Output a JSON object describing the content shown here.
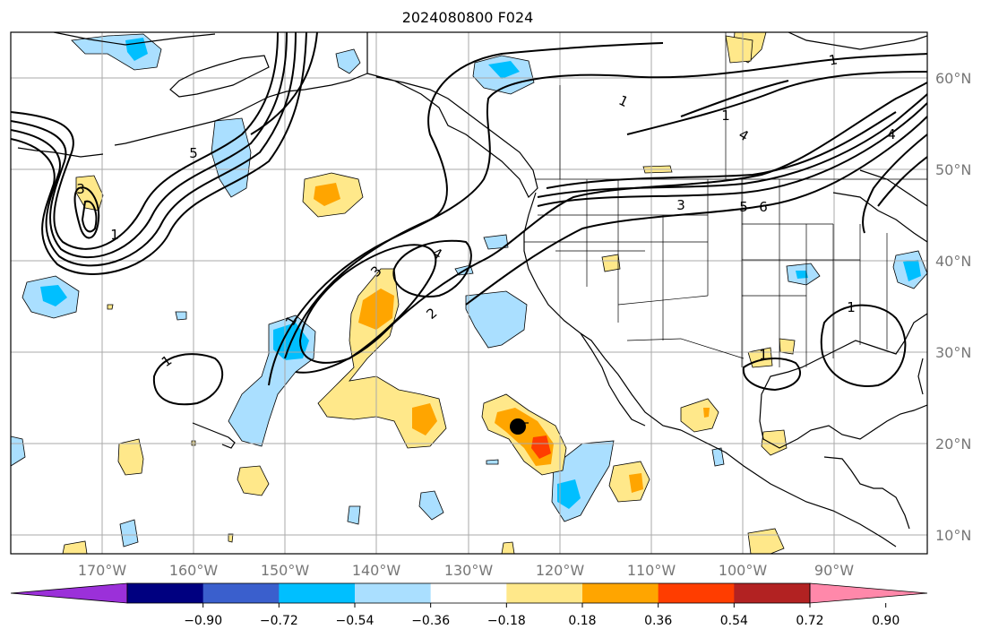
{
  "title": "2024080800 F024",
  "lat_labels": [
    "10°N",
    "20°N",
    "30°N",
    "40°N",
    "50°N",
    "60°N"
  ],
  "lon_labels": [
    "170°W",
    "160°W",
    "150°W",
    "140°W",
    "130°W",
    "120°W",
    "110°W",
    "100°W",
    "90°W"
  ],
  "colorbar": {
    "colors": [
      "#9b30d9",
      "#000080",
      "#3a5fcd",
      "#00bfff",
      "#aadfff",
      "#ffffff",
      "#ffe88a",
      "#ffa500",
      "#ff3d00",
      "#b22222",
      "#ff88aa"
    ],
    "ticks": [
      "−0.90",
      "−0.72",
      "−0.54",
      "−0.36",
      "−0.18",
      "0.18",
      "0.36",
      "0.54",
      "0.72",
      "0.90"
    ]
  },
  "contour_labels": [
    "1",
    "1",
    "1",
    "1",
    "1",
    "1",
    "1",
    "2",
    "3",
    "3",
    "3",
    "4",
    "4",
    "4",
    "5",
    "5",
    "6",
    "1"
  ],
  "marker": "storm-center-dot",
  "colors": {
    "coast": "#000000",
    "grid": "#aaaaaa",
    "contour": "#000000"
  }
}
